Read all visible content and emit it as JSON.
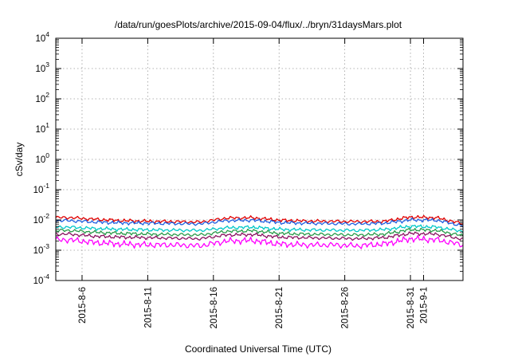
{
  "chart_data": {
    "type": "line",
    "title": "/data/run/goesPlots/archive/2015-09-04/flux/../bryn/31daysMars.plot",
    "xlabel": "Coordinated Universal Time (UTC)",
    "ylabel": "cSv/day",
    "yscale": "log",
    "ylim_exp": [
      -4,
      4
    ],
    "ytick_exps": [
      "-4",
      "-3",
      "-2",
      "-1",
      "0",
      "1",
      "2",
      "3",
      "4"
    ],
    "ytick_base": "10",
    "xlim": [
      "2015-08-04",
      "2015-09-04"
    ],
    "xticks": [
      {
        "label": "2015-8-6",
        "date": "2015-08-06"
      },
      {
        "label": "2015-8-11",
        "date": "2015-08-11"
      },
      {
        "label": "2015-8-16",
        "date": "2015-08-16"
      },
      {
        "label": "2015-8-21",
        "date": "2015-08-21"
      },
      {
        "label": "2015-8-26",
        "date": "2015-08-26"
      },
      {
        "label": "2015-8-31",
        "date": "2015-08-31"
      },
      {
        "label": "2015-9-1",
        "date": "2015-09-01"
      }
    ],
    "grid": true,
    "x": [
      "2015-08-05",
      "2015-08-07",
      "2015-08-09",
      "2015-08-11",
      "2015-08-13",
      "2015-08-15",
      "2015-08-17",
      "2015-08-19",
      "2015-08-21",
      "2015-08-23",
      "2015-08-25",
      "2015-08-27",
      "2015-08-29",
      "2015-08-31",
      "2015-09-02",
      "2015-09-04"
    ],
    "series": [
      {
        "color": "#e00000",
        "values": [
          0.012,
          0.0105,
          0.0095,
          0.009,
          0.0088,
          0.0085,
          0.0115,
          0.0118,
          0.0098,
          0.0092,
          0.009,
          0.0088,
          0.009,
          0.0125,
          0.0118,
          0.0075
        ]
      },
      {
        "color": "#1f5fe0",
        "values": [
          0.0095,
          0.0085,
          0.008,
          0.0078,
          0.0076,
          0.0074,
          0.0095,
          0.0098,
          0.0082,
          0.0078,
          0.0076,
          0.0074,
          0.0078,
          0.01,
          0.0098,
          0.0064
        ]
      },
      {
        "color": "#00c8c8",
        "values": [
          0.0058,
          0.0052,
          0.0049,
          0.0047,
          0.0046,
          0.0045,
          0.0055,
          0.0058,
          0.0049,
          0.0047,
          0.0046,
          0.0045,
          0.0048,
          0.0062,
          0.0058,
          0.0042
        ]
      },
      {
        "color": "#2a9a4a",
        "values": [
          0.0045,
          0.0039,
          0.0036,
          0.0034,
          0.0033,
          0.0032,
          0.0042,
          0.0044,
          0.0036,
          0.0034,
          0.0033,
          0.0032,
          0.0034,
          0.0048,
          0.0045,
          0.003
        ]
      },
      {
        "color": "#8a1060",
        "values": [
          0.0034,
          0.0029,
          0.0027,
          0.0026,
          0.0025,
          0.0024,
          0.0032,
          0.0033,
          0.0027,
          0.0026,
          0.0025,
          0.0024,
          0.0026,
          0.0036,
          0.0034,
          0.0023
        ]
      },
      {
        "color": "#ff00ff",
        "values": [
          0.0022,
          0.0018,
          0.0016,
          0.0015,
          0.0015,
          0.0014,
          0.002,
          0.0021,
          0.0016,
          0.0015,
          0.0015,
          0.0014,
          0.0016,
          0.0024,
          0.0022,
          0.0015
        ]
      }
    ]
  }
}
